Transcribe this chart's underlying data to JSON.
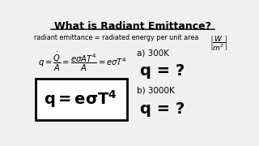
{
  "bg_color": "#f0f0f0",
  "title": "What is Radiant Emittance?",
  "line1": "radiant emittance = radiated energy per unit area",
  "a_label": "a) 300K",
  "a_q": "q = ?",
  "b_label": "b) 3000K",
  "b_q": "q = ?",
  "text_color": "#000000",
  "box_color": "#000000",
  "box_fill": "#ffffff"
}
